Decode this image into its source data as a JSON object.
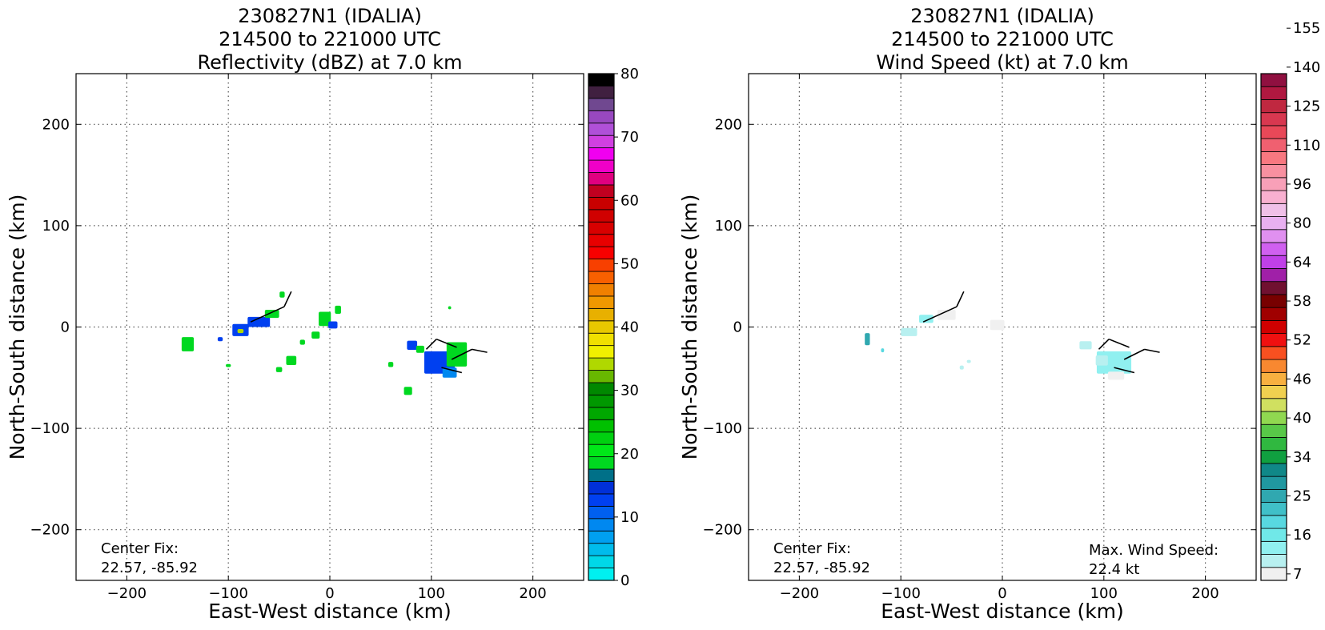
{
  "chart_data": [
    {
      "type": "heatmap",
      "panel": "left",
      "title": [
        "230827N1 (IDALIA)",
        "214500 to 221000 UTC",
        "Reflectivity (dBZ) at 7.0 km"
      ],
      "xlabel": "East-West distance (km)",
      "ylabel": "North-South distance (km)",
      "xlim": [
        -250,
        250
      ],
      "ylim": [
        -250,
        250
      ],
      "xticks": [
        -200,
        -100,
        0,
        100,
        200
      ],
      "yticks": [
        200,
        100,
        0,
        -100,
        -200
      ],
      "grid": true,
      "annotation": [
        "Center Fix:",
        "22.57, -85.92"
      ],
      "colorbar": {
        "min": 0,
        "max": 80,
        "tick_labels": [
          "0",
          "10",
          "20",
          "30",
          "40",
          "50",
          "60",
          "70",
          "80"
        ],
        "colors": [
          "#00f0f0",
          "#00d8e8",
          "#00bcec",
          "#00a0f0",
          "#0088f0",
          "#0060f0",
          "#0040f0",
          "#0030d8",
          "#007088",
          "#00d820",
          "#00e818",
          "#00d010",
          "#00c000",
          "#00a800",
          "#009800",
          "#008800",
          "#68b800",
          "#b0d800",
          "#f0f000",
          "#f0e000",
          "#e8c800",
          "#e8b000",
          "#f09800",
          "#f08000",
          "#f86000",
          "#f84000",
          "#f80000",
          "#e80000",
          "#d80000",
          "#d00000",
          "#c80000",
          "#c00020",
          "#e00080",
          "#f000c8",
          "#f000f0",
          "#d040e0",
          "#b050d8",
          "#9848c0",
          "#704890",
          "#402040",
          "#000000"
        ]
      },
      "echoes": [
        {
          "x": -140,
          "y": -17,
          "w": 12,
          "h": 14,
          "color": "#00d820"
        },
        {
          "x": -88,
          "y": -3,
          "w": 16,
          "h": 12,
          "color": "#0040f0"
        },
        {
          "x": -70,
          "y": 5,
          "w": 22,
          "h": 10,
          "color": "#0040f0"
        },
        {
          "x": -57,
          "y": 13,
          "w": 14,
          "h": 8,
          "color": "#00d820"
        },
        {
          "x": -47,
          "y": 32,
          "w": 5,
          "h": 6,
          "color": "#00d820"
        },
        {
          "x": -88,
          "y": -4,
          "w": 6,
          "h": 4,
          "color": "#b0d800"
        },
        {
          "x": -100,
          "y": -38,
          "w": 5,
          "h": 3,
          "color": "#00d820"
        },
        {
          "x": -38,
          "y": -33,
          "w": 10,
          "h": 9,
          "color": "#00d820"
        },
        {
          "x": -50,
          "y": -42,
          "w": 6,
          "h": 5,
          "color": "#00d820"
        },
        {
          "x": -14,
          "y": -8,
          "w": 8,
          "h": 7,
          "color": "#00d820"
        },
        {
          "x": -5,
          "y": 8,
          "w": 12,
          "h": 14,
          "color": "#00d820"
        },
        {
          "x": 8,
          "y": 17,
          "w": 6,
          "h": 8,
          "color": "#00d820"
        },
        {
          "x": 3,
          "y": 2,
          "w": 9,
          "h": 7,
          "color": "#0040f0"
        },
        {
          "x": -27,
          "y": -15,
          "w": 5,
          "h": 5,
          "color": "#00d820"
        },
        {
          "x": -108,
          "y": -12,
          "w": 5,
          "h": 4,
          "color": "#0040f0"
        },
        {
          "x": 81,
          "y": -18,
          "w": 10,
          "h": 9,
          "color": "#0040f0"
        },
        {
          "x": 108,
          "y": -35,
          "w": 30,
          "h": 22,
          "color": "#0040f0"
        },
        {
          "x": 125,
          "y": -27,
          "w": 20,
          "h": 24,
          "color": "#00d820"
        },
        {
          "x": 118,
          "y": -45,
          "w": 14,
          "h": 10,
          "color": "#0088f0"
        },
        {
          "x": 89,
          "y": -22,
          "w": 8,
          "h": 7,
          "color": "#00d820"
        },
        {
          "x": 77,
          "y": -63,
          "w": 8,
          "h": 8,
          "color": "#00d820"
        },
        {
          "x": 60,
          "y": -37,
          "w": 5,
          "h": 5,
          "color": "#00d820"
        },
        {
          "x": 118,
          "y": 19,
          "w": 3,
          "h": 3,
          "color": "#00d820"
        }
      ]
    },
    {
      "type": "heatmap",
      "panel": "right",
      "title": [
        "230827N1 (IDALIA)",
        "214500 to 221000 UTC",
        "Wind Speed (kt) at 7.0 km"
      ],
      "xlabel": "East-West distance (km)",
      "ylabel": "North-South distance (km)",
      "xlim": [
        -250,
        250
      ],
      "ylim": [
        -250,
        250
      ],
      "xticks": [
        -200,
        -100,
        0,
        100,
        200
      ],
      "yticks": [
        200,
        100,
        0,
        -100,
        -200
      ],
      "grid": true,
      "annotation": [
        "Center Fix:",
        "22.57, -85.92"
      ],
      "annotation_right": [
        "Max. Wind Speed:",
        "22.4 kt"
      ],
      "colorbar": {
        "tick_labels": [
          "7",
          "16",
          "25",
          "34",
          "40",
          "46",
          "52",
          "58",
          "64",
          "80",
          "96",
          "110",
          "125",
          "140",
          "155"
        ],
        "colors": [
          "#f0f0f0",
          "#b8f0f0",
          "#90f0f0",
          "#70e8e8",
          "#58d8e0",
          "#40c0c8",
          "#30a8b0",
          "#2098a0",
          "#108888",
          "#10a040",
          "#30b840",
          "#58c848",
          "#90d850",
          "#d0e060",
          "#f0d050",
          "#f8b040",
          "#f88830",
          "#f85020",
          "#f01010",
          "#d00000",
          "#a00000",
          "#780000",
          "#701030",
          "#a020a8",
          "#c040e8",
          "#d060f0",
          "#e090f0",
          "#e8b0f0",
          "#f0c0e8",
          "#f8b0d0",
          "#f8a0b8",
          "#f890a0",
          "#f87880",
          "#f06070",
          "#e84858",
          "#d83850",
          "#c02840",
          "#b01840",
          "#901040"
        ]
      },
      "echoes": [
        {
          "x": -133,
          "y": -12,
          "w": 5,
          "h": 12,
          "color": "#30a8b0"
        },
        {
          "x": -118,
          "y": -23,
          "w": 3,
          "h": 4,
          "color": "#58d8e0"
        },
        {
          "x": -75,
          "y": 8,
          "w": 14,
          "h": 8,
          "color": "#90f0f0"
        },
        {
          "x": -92,
          "y": -5,
          "w": 16,
          "h": 8,
          "color": "#b8f0f0"
        },
        {
          "x": -55,
          "y": 12,
          "w": 18,
          "h": 10,
          "color": "#f0f0f0"
        },
        {
          "x": -5,
          "y": 2,
          "w": 14,
          "h": 10,
          "color": "#f0f0f0"
        },
        {
          "x": -40,
          "y": -40,
          "w": 4,
          "h": 4,
          "color": "#b8f0f0"
        },
        {
          "x": -33,
          "y": -34,
          "w": 4,
          "h": 3,
          "color": "#b8f0f0"
        },
        {
          "x": 82,
          "y": -18,
          "w": 12,
          "h": 8,
          "color": "#b8f0f0"
        },
        {
          "x": 110,
          "y": -35,
          "w": 34,
          "h": 22,
          "color": "#90f0f0"
        },
        {
          "x": 98,
          "y": -33,
          "w": 12,
          "h": 10,
          "color": "#b8f0f0"
        },
        {
          "x": 112,
          "y": -48,
          "w": 16,
          "h": 8,
          "color": "#f0f0f0"
        }
      ]
    }
  ]
}
